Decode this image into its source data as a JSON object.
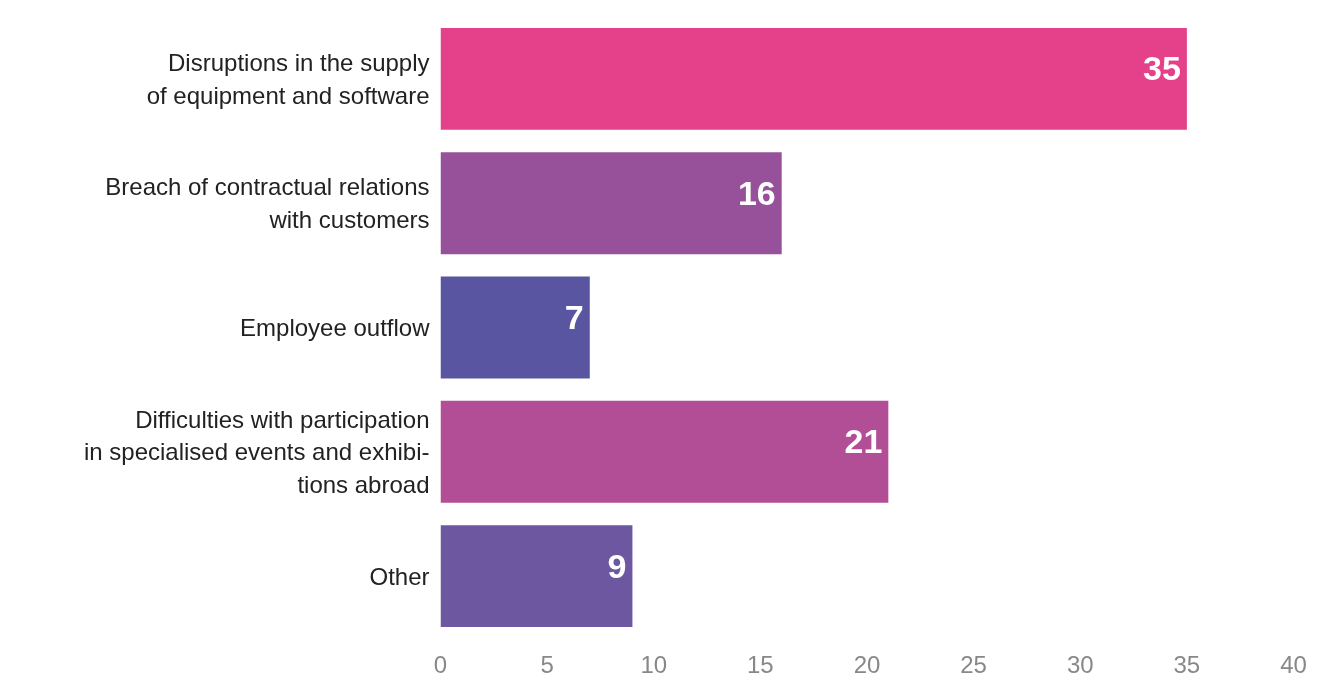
{
  "chart_data": {
    "type": "bar",
    "orientation": "horizontal",
    "categories": [
      "Disruptions in the supply\nof equipment and software",
      "Breach of contractual relations\nwith customers",
      "Employee outflow",
      "Difficulties with participation\nin specialised events and exhibi-\ntions abroad",
      "Other"
    ],
    "values": [
      35,
      16,
      7,
      21,
      9
    ],
    "colors": [
      "#e5418b",
      "#97519a",
      "#5a55a0",
      "#b24e95",
      "#6c57a0"
    ],
    "xlim": [
      0,
      40
    ],
    "xticks": [
      0,
      5,
      10,
      15,
      20,
      25,
      30,
      35,
      40
    ],
    "data_labels": true,
    "grid": false
  }
}
